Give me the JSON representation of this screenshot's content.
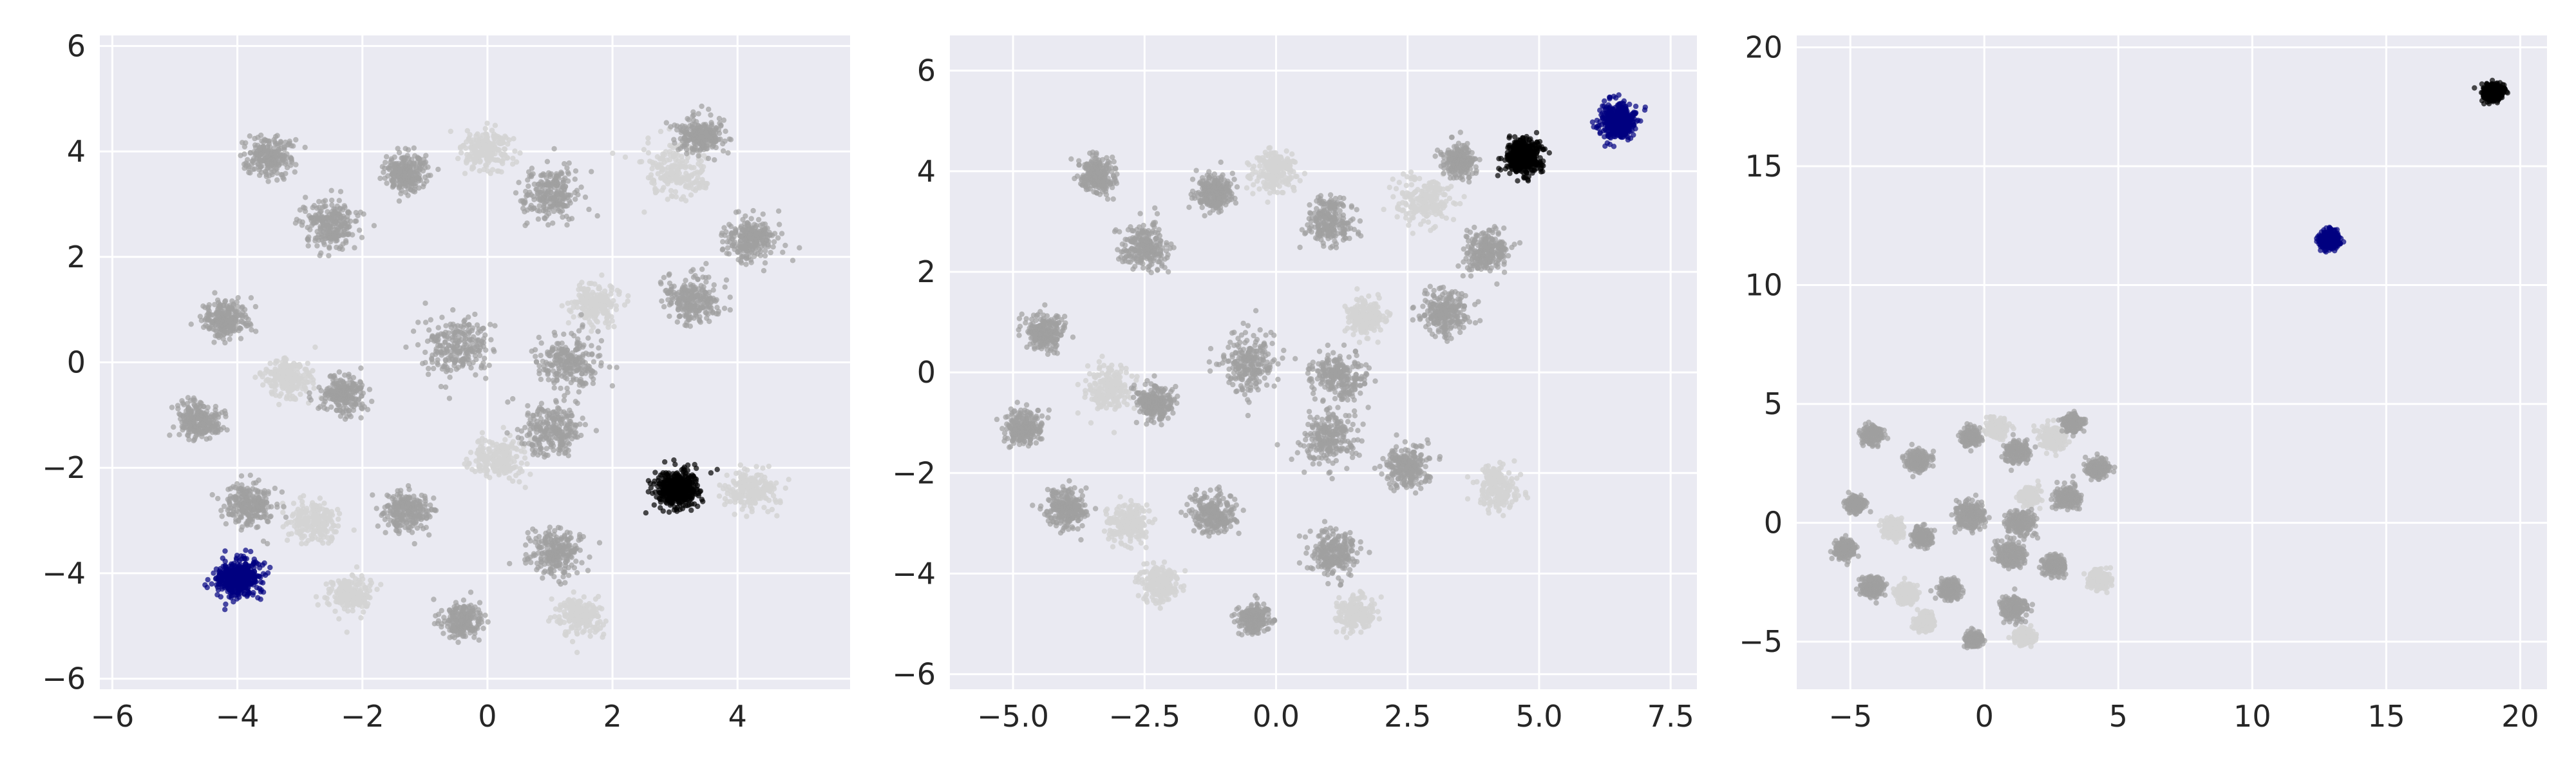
{
  "colors": {
    "background": "#eaeaf2",
    "grid": "#ffffff",
    "gray_light": "#d3d3d3",
    "gray_dark": "#a0a0a0",
    "black": "#000000",
    "navy": "#000080"
  },
  "chart_data": [
    {
      "type": "scatter",
      "title": "",
      "xlabel": "",
      "ylabel": "",
      "xlim": [
        -6.2,
        5.8
      ],
      "ylim": [
        -6.2,
        6.2
      ],
      "grid": true,
      "xticks": [
        -6,
        -4,
        -2,
        0,
        2,
        4
      ],
      "yticks": [
        -6,
        -4,
        -2,
        0,
        2,
        4,
        6
      ],
      "xtick_labels": [
        "−6",
        "−4",
        "−2",
        "0",
        "2",
        "4"
      ],
      "ytick_labels": [
        "−6",
        "−4",
        "−2",
        "0",
        "2",
        "4",
        "6"
      ],
      "clusters": [
        {
          "x": -4.0,
          "y": -4.1,
          "spread": 0.35,
          "color": "navy"
        },
        {
          "x": 3.0,
          "y": -2.4,
          "spread": 0.35,
          "color": "black"
        },
        {
          "x": -3.5,
          "y": 3.9,
          "spread": 0.35,
          "color": "gray_dark"
        },
        {
          "x": -2.5,
          "y": 2.6,
          "spread": 0.45,
          "color": "gray_dark"
        },
        {
          "x": -1.3,
          "y": 3.6,
          "spread": 0.35,
          "color": "gray_dark"
        },
        {
          "x": 0.0,
          "y": 4.0,
          "spread": 0.4,
          "color": "gray_light"
        },
        {
          "x": 1.0,
          "y": 3.2,
          "spread": 0.45,
          "color": "gray_dark"
        },
        {
          "x": 3.0,
          "y": 3.6,
          "spread": 0.5,
          "color": "gray_light"
        },
        {
          "x": 3.4,
          "y": 4.3,
          "spread": 0.35,
          "color": "gray_dark"
        },
        {
          "x": 4.2,
          "y": 2.3,
          "spread": 0.4,
          "color": "gray_dark"
        },
        {
          "x": 3.3,
          "y": 1.2,
          "spread": 0.45,
          "color": "gray_dark"
        },
        {
          "x": -4.2,
          "y": 0.8,
          "spread": 0.35,
          "color": "gray_dark"
        },
        {
          "x": -4.6,
          "y": -1.1,
          "spread": 0.35,
          "color": "gray_dark"
        },
        {
          "x": -3.2,
          "y": -0.3,
          "spread": 0.4,
          "color": "gray_light"
        },
        {
          "x": -2.3,
          "y": -0.6,
          "spread": 0.35,
          "color": "gray_dark"
        },
        {
          "x": -0.5,
          "y": 0.3,
          "spread": 0.55,
          "color": "gray_dark"
        },
        {
          "x": 1.3,
          "y": 0.0,
          "spread": 0.5,
          "color": "gray_dark"
        },
        {
          "x": 1.0,
          "y": -1.3,
          "spread": 0.5,
          "color": "gray_dark"
        },
        {
          "x": 1.7,
          "y": 1.1,
          "spread": 0.35,
          "color": "gray_light"
        },
        {
          "x": 0.2,
          "y": -1.8,
          "spread": 0.4,
          "color": "gray_light"
        },
        {
          "x": 4.2,
          "y": -2.4,
          "spread": 0.4,
          "color": "gray_light"
        },
        {
          "x": -3.8,
          "y": -2.7,
          "spread": 0.4,
          "color": "gray_dark"
        },
        {
          "x": -2.8,
          "y": -3.0,
          "spread": 0.4,
          "color": "gray_light"
        },
        {
          "x": -2.2,
          "y": -4.4,
          "spread": 0.35,
          "color": "gray_light"
        },
        {
          "x": -1.3,
          "y": -2.8,
          "spread": 0.4,
          "color": "gray_dark"
        },
        {
          "x": -0.4,
          "y": -4.9,
          "spread": 0.3,
          "color": "gray_dark"
        },
        {
          "x": 1.1,
          "y": -3.6,
          "spread": 0.45,
          "color": "gray_dark"
        },
        {
          "x": 1.5,
          "y": -4.8,
          "spread": 0.35,
          "color": "gray_light"
        }
      ]
    },
    {
      "type": "scatter",
      "title": "",
      "xlabel": "",
      "ylabel": "",
      "xlim": [
        -6.2,
        8.0
      ],
      "ylim": [
        -6.3,
        6.7
      ],
      "grid": true,
      "xticks": [
        -5.0,
        -2.5,
        0.0,
        2.5,
        5.0,
        7.5
      ],
      "yticks": [
        -6,
        -4,
        -2,
        0,
        2,
        4,
        6
      ],
      "xtick_labels": [
        "−5.0",
        "−2.5",
        "0.0",
        "2.5",
        "5.0",
        "7.5"
      ],
      "ytick_labels": [
        "−6",
        "−4",
        "−2",
        "0",
        "2",
        "4",
        "6"
      ],
      "clusters": [
        {
          "x": 6.5,
          "y": 5.0,
          "spread": 0.35,
          "color": "navy"
        },
        {
          "x": 4.7,
          "y": 4.3,
          "spread": 0.35,
          "color": "black"
        },
        {
          "x": -3.4,
          "y": 3.9,
          "spread": 0.35,
          "color": "gray_dark"
        },
        {
          "x": -2.5,
          "y": 2.5,
          "spread": 0.45,
          "color": "gray_dark"
        },
        {
          "x": -1.2,
          "y": 3.6,
          "spread": 0.35,
          "color": "gray_dark"
        },
        {
          "x": 0.0,
          "y": 4.0,
          "spread": 0.4,
          "color": "gray_light"
        },
        {
          "x": 1.0,
          "y": 3.0,
          "spread": 0.45,
          "color": "gray_dark"
        },
        {
          "x": 2.8,
          "y": 3.4,
          "spread": 0.5,
          "color": "gray_light"
        },
        {
          "x": 3.5,
          "y": 4.2,
          "spread": 0.3,
          "color": "gray_dark"
        },
        {
          "x": 4.0,
          "y": 2.4,
          "spread": 0.4,
          "color": "gray_dark"
        },
        {
          "x": 3.2,
          "y": 1.2,
          "spread": 0.45,
          "color": "gray_dark"
        },
        {
          "x": -4.4,
          "y": 0.8,
          "spread": 0.35,
          "color": "gray_dark"
        },
        {
          "x": -4.8,
          "y": -1.1,
          "spread": 0.35,
          "color": "gray_dark"
        },
        {
          "x": -3.2,
          "y": -0.3,
          "spread": 0.4,
          "color": "gray_light"
        },
        {
          "x": -2.3,
          "y": -0.6,
          "spread": 0.35,
          "color": "gray_dark"
        },
        {
          "x": -0.5,
          "y": 0.2,
          "spread": 0.55,
          "color": "gray_dark"
        },
        {
          "x": 1.2,
          "y": -0.1,
          "spread": 0.5,
          "color": "gray_dark"
        },
        {
          "x": 1.0,
          "y": -1.3,
          "spread": 0.5,
          "color": "gray_dark"
        },
        {
          "x": 1.7,
          "y": 1.1,
          "spread": 0.35,
          "color": "gray_light"
        },
        {
          "x": 2.5,
          "y": -1.9,
          "spread": 0.4,
          "color": "gray_dark"
        },
        {
          "x": 4.2,
          "y": -2.3,
          "spread": 0.4,
          "color": "gray_light"
        },
        {
          "x": -4.0,
          "y": -2.7,
          "spread": 0.4,
          "color": "gray_dark"
        },
        {
          "x": -2.8,
          "y": -3.0,
          "spread": 0.4,
          "color": "gray_light"
        },
        {
          "x": -2.2,
          "y": -4.2,
          "spread": 0.35,
          "color": "gray_light"
        },
        {
          "x": -1.2,
          "y": -2.8,
          "spread": 0.4,
          "color": "gray_dark"
        },
        {
          "x": -0.4,
          "y": -4.9,
          "spread": 0.3,
          "color": "gray_dark"
        },
        {
          "x": 1.1,
          "y": -3.6,
          "spread": 0.45,
          "color": "gray_dark"
        },
        {
          "x": 1.5,
          "y": -4.8,
          "spread": 0.35,
          "color": "gray_light"
        }
      ]
    },
    {
      "type": "scatter",
      "title": "",
      "xlabel": "",
      "ylabel": "",
      "xlim": [
        -7,
        21
      ],
      "ylim": [
        -7,
        20.5
      ],
      "grid": true,
      "xticks": [
        -5,
        0,
        5,
        10,
        15,
        20
      ],
      "yticks": [
        -5,
        0,
        5,
        10,
        15,
        20
      ],
      "xtick_labels": [
        "−5",
        "0",
        "5",
        "10",
        "15",
        "20"
      ],
      "ytick_labels": [
        "−5",
        "0",
        "5",
        "10",
        "15",
        "20"
      ],
      "clusters": [
        {
          "x": 12.9,
          "y": 11.9,
          "spread": 0.35,
          "color": "navy"
        },
        {
          "x": 19.0,
          "y": 18.1,
          "spread": 0.35,
          "color": "black"
        },
        {
          "x": -4.2,
          "y": 3.7,
          "spread": 0.35,
          "color": "gray_dark"
        },
        {
          "x": -2.5,
          "y": 2.6,
          "spread": 0.45,
          "color": "gray_dark"
        },
        {
          "x": -0.5,
          "y": 3.6,
          "spread": 0.35,
          "color": "gray_dark"
        },
        {
          "x": 0.5,
          "y": 4.0,
          "spread": 0.4,
          "color": "gray_light"
        },
        {
          "x": 1.2,
          "y": 3.0,
          "spread": 0.45,
          "color": "gray_dark"
        },
        {
          "x": 2.6,
          "y": 3.6,
          "spread": 0.5,
          "color": "gray_light"
        },
        {
          "x": 3.3,
          "y": 4.2,
          "spread": 0.35,
          "color": "gray_dark"
        },
        {
          "x": 4.2,
          "y": 2.3,
          "spread": 0.4,
          "color": "gray_dark"
        },
        {
          "x": 3.1,
          "y": 1.1,
          "spread": 0.45,
          "color": "gray_dark"
        },
        {
          "x": -4.8,
          "y": 0.8,
          "spread": 0.35,
          "color": "gray_dark"
        },
        {
          "x": -5.2,
          "y": -1.1,
          "spread": 0.35,
          "color": "gray_dark"
        },
        {
          "x": -3.4,
          "y": -0.3,
          "spread": 0.4,
          "color": "gray_light"
        },
        {
          "x": -2.3,
          "y": -0.6,
          "spread": 0.35,
          "color": "gray_dark"
        },
        {
          "x": -0.5,
          "y": 0.3,
          "spread": 0.55,
          "color": "gray_dark"
        },
        {
          "x": 1.3,
          "y": 0.0,
          "spread": 0.5,
          "color": "gray_dark"
        },
        {
          "x": 1.0,
          "y": -1.3,
          "spread": 0.5,
          "color": "gray_dark"
        },
        {
          "x": 1.7,
          "y": 1.1,
          "spread": 0.35,
          "color": "gray_light"
        },
        {
          "x": 2.6,
          "y": -1.8,
          "spread": 0.4,
          "color": "gray_dark"
        },
        {
          "x": 4.3,
          "y": -2.4,
          "spread": 0.4,
          "color": "gray_light"
        },
        {
          "x": -4.2,
          "y": -2.7,
          "spread": 0.4,
          "color": "gray_dark"
        },
        {
          "x": -2.9,
          "y": -3.0,
          "spread": 0.4,
          "color": "gray_light"
        },
        {
          "x": -2.2,
          "y": -4.2,
          "spread": 0.35,
          "color": "gray_light"
        },
        {
          "x": -1.3,
          "y": -2.8,
          "spread": 0.4,
          "color": "gray_dark"
        },
        {
          "x": -0.4,
          "y": -4.9,
          "spread": 0.3,
          "color": "gray_dark"
        },
        {
          "x": 1.1,
          "y": -3.6,
          "spread": 0.45,
          "color": "gray_dark"
        },
        {
          "x": 1.5,
          "y": -4.8,
          "spread": 0.35,
          "color": "gray_light"
        }
      ]
    }
  ]
}
